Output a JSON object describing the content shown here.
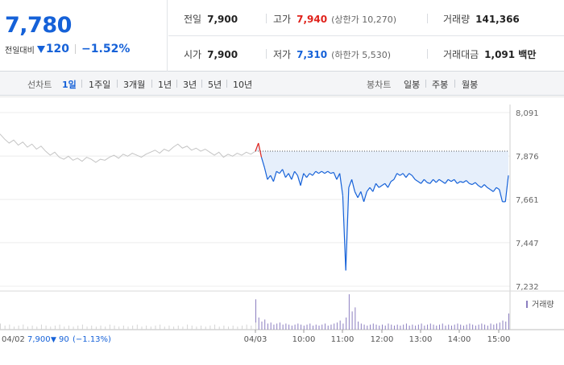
{
  "summary": {
    "price": "7,780",
    "change_label": "전일대비",
    "change_value": "120",
    "change_pct": "−1.52%",
    "stats": [
      {
        "label": "전일",
        "value": "7,900",
        "note": "",
        "tone": ""
      },
      {
        "label": "고가",
        "value": "7,940",
        "note": "(상한가 10,270)",
        "tone": "up"
      },
      {
        "label": "거래량",
        "value": "141,366",
        "note": "",
        "tone": ""
      },
      {
        "label": "시가",
        "value": "7,900",
        "note": "",
        "tone": ""
      },
      {
        "label": "저가",
        "value": "7,310",
        "note": "(하한가 5,530)",
        "tone": "down"
      },
      {
        "label": "거래대금",
        "value": "1,091 백만",
        "note": "",
        "tone": ""
      }
    ]
  },
  "period_bar": {
    "line_label": "선차트",
    "line_options": [
      "1일",
      "1주일",
      "3개월",
      "1년",
      "3년",
      "5년",
      "10년"
    ],
    "active_option": "1일",
    "candle_label": "봉차트",
    "candle_options": [
      "일봉",
      "주봉",
      "월봉"
    ]
  },
  "colors": {
    "down": "#1561d8",
    "up": "#e0221b",
    "prev_line": "#c4c4c4",
    "area_fill": "#e6effb",
    "volume": "#8c7fc0"
  },
  "chart_data": {
    "type": "line",
    "title": "",
    "xlabel": "",
    "ylabel": "",
    "ylim": [
      7232,
      8091
    ],
    "yticks": [
      "8,091",
      "7,876",
      "7,661",
      "7,447",
      "7,232"
    ],
    "ytick_values": [
      8091,
      7876,
      7661,
      7447,
      7232
    ],
    "xticks": [
      "04/03",
      "10:00",
      "11:00",
      "12:00",
      "13:00",
      "14:00",
      "15:00"
    ],
    "reference_level": 7900,
    "prev_day": {
      "label": "04/02",
      "close": "7,900",
      "change": "90",
      "change_pct": "(−1.13%)",
      "values": [
        7985,
        7960,
        7940,
        7955,
        7930,
        7945,
        7920,
        7935,
        7910,
        7925,
        7900,
        7880,
        7895,
        7870,
        7860,
        7875,
        7855,
        7865,
        7850,
        7870,
        7860,
        7845,
        7860,
        7855,
        7870,
        7880,
        7865,
        7885,
        7875,
        7890,
        7880,
        7870,
        7885,
        7895,
        7905,
        7890,
        7910,
        7900,
        7920,
        7935,
        7915,
        7925,
        7905,
        7915,
        7900,
        7910,
        7895,
        7880,
        7895,
        7870,
        7885,
        7875,
        7890,
        7880,
        7895,
        7885,
        7900
      ]
    },
    "series": [
      {
        "name": "",
        "x": [
          "09:00",
          "09:03",
          "09:06",
          "09:09",
          "09:12",
          "09:15",
          "09:18",
          "09:21",
          "09:24",
          "09:27",
          "09:30",
          "09:35",
          "09:40",
          "09:45",
          "09:50",
          "09:55",
          "10:00",
          "10:05",
          "10:10",
          "10:15",
          "10:20",
          "10:25",
          "10:30",
          "10:35",
          "10:40",
          "10:45",
          "10:50",
          "10:55",
          "11:00",
          "11:05",
          "11:08",
          "11:10",
          "11:12",
          "11:15",
          "11:20",
          "11:25",
          "11:30",
          "11:35",
          "11:40",
          "11:45",
          "11:50",
          "11:55",
          "12:00",
          "12:05",
          "12:10",
          "12:15",
          "12:20",
          "12:25",
          "12:30",
          "12:35",
          "12:40",
          "12:45",
          "12:50",
          "12:55",
          "13:00",
          "13:05",
          "13:10",
          "13:15",
          "13:20",
          "13:25",
          "13:30",
          "13:35",
          "13:40",
          "13:45",
          "13:50",
          "13:55",
          "14:00",
          "14:05",
          "14:10",
          "14:15",
          "14:20",
          "14:25",
          "14:30",
          "14:35",
          "14:40",
          "14:45",
          "14:50",
          "14:55",
          "15:00",
          "15:05",
          "15:10",
          "15:15",
          "15:20",
          "15:25",
          "15:30"
        ],
        "values": [
          7900,
          7940,
          7870,
          7820,
          7760,
          7780,
          7750,
          7800,
          7790,
          7810,
          7770,
          7790,
          7760,
          7800,
          7780,
          7730,
          7790,
          7770,
          7790,
          7780,
          7800,
          7790,
          7800,
          7790,
          7800,
          7790,
          7795,
          7760,
          7790,
          7680,
          7310,
          7720,
          7760,
          7700,
          7670,
          7700,
          7650,
          7700,
          7720,
          7700,
          7740,
          7720,
          7730,
          7740,
          7720,
          7750,
          7760,
          7790,
          7780,
          7790,
          7770,
          7790,
          7780,
          7760,
          7750,
          7740,
          7760,
          7745,
          7740,
          7760,
          7745,
          7760,
          7750,
          7740,
          7760,
          7750,
          7760,
          7740,
          7750,
          7745,
          7755,
          7740,
          7735,
          7745,
          7730,
          7720,
          7735,
          7720,
          7710,
          7700,
          7720,
          7710,
          7650,
          7650,
          7780
        ]
      }
    ],
    "volume": {
      "label": "거래량",
      "values": [
        30,
        12,
        8,
        10,
        6,
        7,
        5,
        6,
        7,
        5,
        6,
        5,
        4,
        5,
        6,
        5,
        4,
        5,
        6,
        4,
        5,
        4,
        5,
        6,
        4,
        5,
        6,
        7,
        9,
        6,
        12,
        35,
        18,
        22,
        8,
        6,
        5,
        4,
        5,
        6,
        5,
        4,
        5,
        4,
        6,
        5,
        4,
        5,
        4,
        5,
        6,
        4,
        5,
        4,
        5,
        6,
        4,
        5,
        6,
        5,
        4,
        5,
        6,
        4,
        5,
        4,
        5,
        6,
        5,
        4,
        5,
        6,
        5,
        4,
        5,
        6,
        5,
        4,
        6,
        5,
        6,
        7,
        9,
        8,
        16
      ],
      "prev_day_values": [
        6,
        4,
        5,
        3,
        4,
        5,
        3,
        4,
        3,
        5,
        4,
        3,
        4,
        5,
        3,
        4,
        3,
        4,
        5,
        3,
        4,
        3,
        4,
        3,
        5,
        4,
        3,
        4,
        3,
        4,
        5,
        3,
        4,
        3,
        4,
        5,
        3,
        4,
        3,
        4,
        3,
        5,
        4,
        3,
        4,
        3,
        4,
        5,
        3,
        4,
        3,
        4,
        3,
        4,
        5,
        4,
        7
      ]
    },
    "grid": true,
    "legend": "none"
  }
}
